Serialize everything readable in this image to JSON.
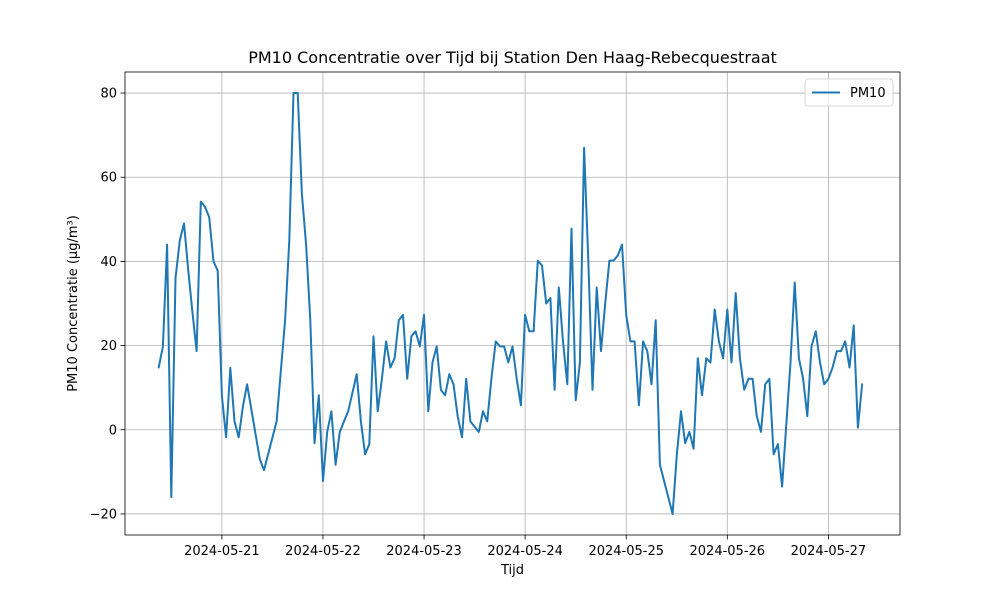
{
  "chart_data": {
    "type": "line",
    "title": "PM10 Concentratie over Tijd bij Station Den Haag-Rebecquestraat",
    "xlabel": "Tijd",
    "ylabel": "PM10 Concentratie (µg/m³)",
    "xlim": [
      "2024-05-20 01:00",
      "2024-05-27 17:00"
    ],
    "ylim": [
      -25,
      85
    ],
    "x_ticks": [
      "2024-05-21",
      "2024-05-22",
      "2024-05-23",
      "2024-05-24",
      "2024-05-25",
      "2024-05-26",
      "2024-05-27"
    ],
    "y_ticks": [
      -20,
      0,
      20,
      40,
      60,
      80
    ],
    "grid": true,
    "legend": "top-right",
    "series": [
      {
        "name": "PM10",
        "color": "#1f77b4",
        "x": [
          "2024-05-20 09:00",
          "2024-05-20 10:00",
          "2024-05-20 11:00",
          "2024-05-20 12:00",
          "2024-05-20 13:00",
          "2024-05-20 14:00",
          "2024-05-20 15:00",
          "2024-05-20 16:00",
          "2024-05-20 17:00",
          "2024-05-20 18:00",
          "2024-05-20 19:00",
          "2024-05-20 20:00",
          "2024-05-20 21:00",
          "2024-05-20 22:00",
          "2024-05-20 23:00",
          "2024-05-21 00:00",
          "2024-05-21 01:00",
          "2024-05-21 02:00",
          "2024-05-21 03:00",
          "2024-05-21 04:00",
          "2024-05-21 05:00",
          "2024-05-21 06:00",
          "2024-05-21 09:00",
          "2024-05-21 10:00",
          "2024-05-21 13:00",
          "2024-05-21 15:00",
          "2024-05-21 16:00",
          "2024-05-21 17:00",
          "2024-05-21 18:00",
          "2024-05-21 19:00",
          "2024-05-21 20:00",
          "2024-05-21 21:00",
          "2024-05-21 22:00",
          "2024-05-21 23:00",
          "2024-05-22 00:00",
          "2024-05-22 01:00",
          "2024-05-22 02:00",
          "2024-05-22 03:00",
          "2024-05-22 04:00",
          "2024-05-22 05:00",
          "2024-05-22 06:00",
          "2024-05-22 08:00",
          "2024-05-22 09:00",
          "2024-05-22 10:00",
          "2024-05-22 11:00",
          "2024-05-22 12:00",
          "2024-05-22 13:00",
          "2024-05-22 14:00",
          "2024-05-22 15:00",
          "2024-05-22 16:00",
          "2024-05-22 17:00",
          "2024-05-22 18:00",
          "2024-05-22 19:00",
          "2024-05-22 20:00",
          "2024-05-22 21:00",
          "2024-05-22 22:00",
          "2024-05-22 23:00",
          "2024-05-23 00:00",
          "2024-05-23 01:00",
          "2024-05-23 02:00",
          "2024-05-23 03:00",
          "2024-05-23 04:00",
          "2024-05-23 05:00",
          "2024-05-23 06:00",
          "2024-05-23 07:00",
          "2024-05-23 08:00",
          "2024-05-23 09:00",
          "2024-05-23 10:00",
          "2024-05-23 11:00",
          "2024-05-23 12:00",
          "2024-05-23 13:00",
          "2024-05-23 14:00",
          "2024-05-23 15:00",
          "2024-05-23 16:00",
          "2024-05-23 17:00",
          "2024-05-23 18:00",
          "2024-05-23 19:00",
          "2024-05-23 20:00",
          "2024-05-23 21:00",
          "2024-05-23 22:00",
          "2024-05-23 23:00",
          "2024-05-24 00:00",
          "2024-05-24 01:00",
          "2024-05-24 02:00",
          "2024-05-24 03:00",
          "2024-05-24 04:00",
          "2024-05-24 05:00",
          "2024-05-24 06:00",
          "2024-05-24 07:00",
          "2024-05-24 08:00",
          "2024-05-24 09:00",
          "2024-05-24 10:00",
          "2024-05-24 11:00",
          "2024-05-24 12:00",
          "2024-05-24 13:00",
          "2024-05-24 14:00",
          "2024-05-24 15:00",
          "2024-05-24 16:00",
          "2024-05-24 17:00",
          "2024-05-24 18:00",
          "2024-05-24 19:00",
          "2024-05-24 20:00",
          "2024-05-24 21:00",
          "2024-05-24 22:00",
          "2024-05-24 23:00",
          "2024-05-25 00:00",
          "2024-05-25 01:00",
          "2024-05-25 02:00",
          "2024-05-25 03:00",
          "2024-05-25 04:00",
          "2024-05-25 05:00",
          "2024-05-25 06:00",
          "2024-05-25 07:00",
          "2024-05-25 08:00",
          "2024-05-25 11:00",
          "2024-05-25 12:00",
          "2024-05-25 13:00",
          "2024-05-25 14:00",
          "2024-05-25 15:00",
          "2024-05-25 16:00",
          "2024-05-25 17:00",
          "2024-05-25 18:00",
          "2024-05-25 19:00",
          "2024-05-25 20:00",
          "2024-05-25 21:00",
          "2024-05-25 22:00",
          "2024-05-25 23:00",
          "2024-05-26 00:00",
          "2024-05-26 01:00",
          "2024-05-26 02:00",
          "2024-05-26 03:00",
          "2024-05-26 04:00",
          "2024-05-26 05:00",
          "2024-05-26 06:00",
          "2024-05-26 07:00",
          "2024-05-26 08:00",
          "2024-05-26 09:00",
          "2024-05-26 10:00",
          "2024-05-26 11:00",
          "2024-05-26 12:00",
          "2024-05-26 13:00",
          "2024-05-26 15:00",
          "2024-05-26 16:00",
          "2024-05-26 17:00",
          "2024-05-26 18:00",
          "2024-05-26 19:00",
          "2024-05-26 20:00",
          "2024-05-26 21:00",
          "2024-05-26 22:00",
          "2024-05-26 23:00",
          "2024-05-27 00:00",
          "2024-05-27 01:00",
          "2024-05-27 02:00",
          "2024-05-27 03:00",
          "2024-05-27 04:00",
          "2024-05-27 05:00",
          "2024-05-27 06:00",
          "2024-05-27 07:00",
          "2024-05-27 08:00"
        ],
        "values": [
          14.8,
          19.8,
          44.0,
          -16.0,
          36.0,
          45.0,
          49.0,
          38.0,
          28.0,
          18.7,
          54.2,
          53.0,
          50.5,
          40.0,
          37.8,
          8.0,
          -1.8,
          14.7,
          2.0,
          -1.8,
          5.5,
          10.8,
          -7.0,
          -9.6,
          2.0,
          26.0,
          45.0,
          80.0,
          80.0,
          56.0,
          44.0,
          26.0,
          -3.2,
          8.2,
          -12.2,
          -0.5,
          4.4,
          -8.3,
          -0.5,
          2.0,
          4.4,
          13.2,
          2.0,
          -5.8,
          -3.4,
          22.2,
          4.4,
          12.1,
          21.0,
          14.8,
          17.0,
          26.0,
          27.3,
          12.1,
          22.2,
          23.4,
          19.8,
          27.3,
          4.4,
          16.0,
          19.8,
          9.5,
          8.2,
          13.2,
          10.8,
          3.2,
          -1.8,
          12.1,
          2.0,
          0.7,
          -0.5,
          4.4,
          2.0,
          12.1,
          21.0,
          19.8,
          19.8,
          16.0,
          19.8,
          12.1,
          5.8,
          27.3,
          23.4,
          23.4,
          40.2,
          39.0,
          30.0,
          31.3,
          9.5,
          33.8,
          21.0,
          10.8,
          47.8,
          7.0,
          16.0,
          67.0,
          40.2,
          9.5,
          33.8,
          18.7,
          30.0,
          40.2,
          40.2,
          41.4,
          44.0,
          27.3,
          21.0,
          21.0,
          5.8,
          21.0,
          18.7,
          10.8,
          26.0,
          -8.3,
          -20.0,
          -6.0,
          4.4,
          -3.2,
          -0.5,
          -4.5,
          17.0,
          8.2,
          17.0,
          16.0,
          28.6,
          21.0,
          17.0,
          28.6,
          16.0,
          32.5,
          17.0,
          9.5,
          12.1,
          12.1,
          3.2,
          -0.5,
          10.8,
          12.1,
          -5.8,
          -3.4,
          -13.5,
          16.0,
          35.0,
          17.0,
          12.1,
          3.2,
          19.8,
          23.4,
          16.0,
          10.8,
          12.1,
          14.8,
          18.7,
          18.7,
          21.0,
          14.8,
          24.8,
          0.5,
          10.8
        ]
      }
    ]
  }
}
